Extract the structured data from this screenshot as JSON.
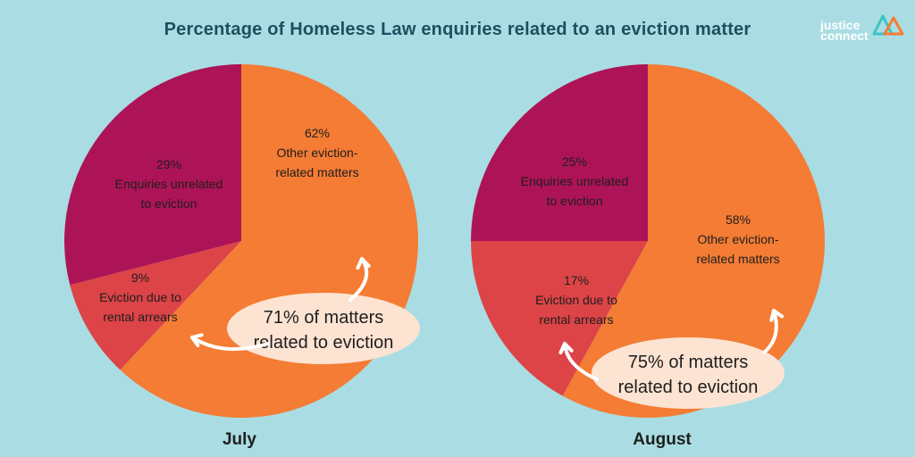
{
  "title": "Percentage of Homeless Law enquiries related to an eviction matter",
  "logo": {
    "line1": "justice",
    "line2": "connect"
  },
  "colors": {
    "background": "#a9dde3",
    "other_eviction": "#f47c34",
    "rental_arrears": "#dc4447",
    "unrelated": "#ad1457",
    "bubble": "#fce3d2",
    "title": "#1f4e5f"
  },
  "chart_data": [
    {
      "type": "pie",
      "title": "July",
      "slices": [
        {
          "pct_label": "62%",
          "lines": [
            "Other eviction-",
            "related matters"
          ],
          "value": 62,
          "color_key": "other_eviction"
        },
        {
          "pct_label": "9%",
          "lines": [
            "Eviction due to",
            "rental arrears"
          ],
          "value": 9,
          "color_key": "rental_arrears"
        },
        {
          "pct_label": "29%",
          "lines": [
            "Enquiries unrelated",
            "to eviction"
          ],
          "value": 29,
          "color_key": "unrelated"
        }
      ],
      "callout": [
        "71% of matters",
        "related to eviction"
      ]
    },
    {
      "type": "pie",
      "title": "August",
      "slices": [
        {
          "pct_label": "58%",
          "lines": [
            "Other eviction-",
            "related matters"
          ],
          "value": 58,
          "color_key": "other_eviction"
        },
        {
          "pct_label": "17%",
          "lines": [
            "Eviction due to",
            "rental arrears"
          ],
          "value": 17,
          "color_key": "rental_arrears"
        },
        {
          "pct_label": "25%",
          "lines": [
            "Enquiries unrelated",
            "to eviction"
          ],
          "value": 25,
          "color_key": "unrelated"
        }
      ],
      "callout": [
        "75% of matters",
        "related to eviction"
      ]
    }
  ]
}
